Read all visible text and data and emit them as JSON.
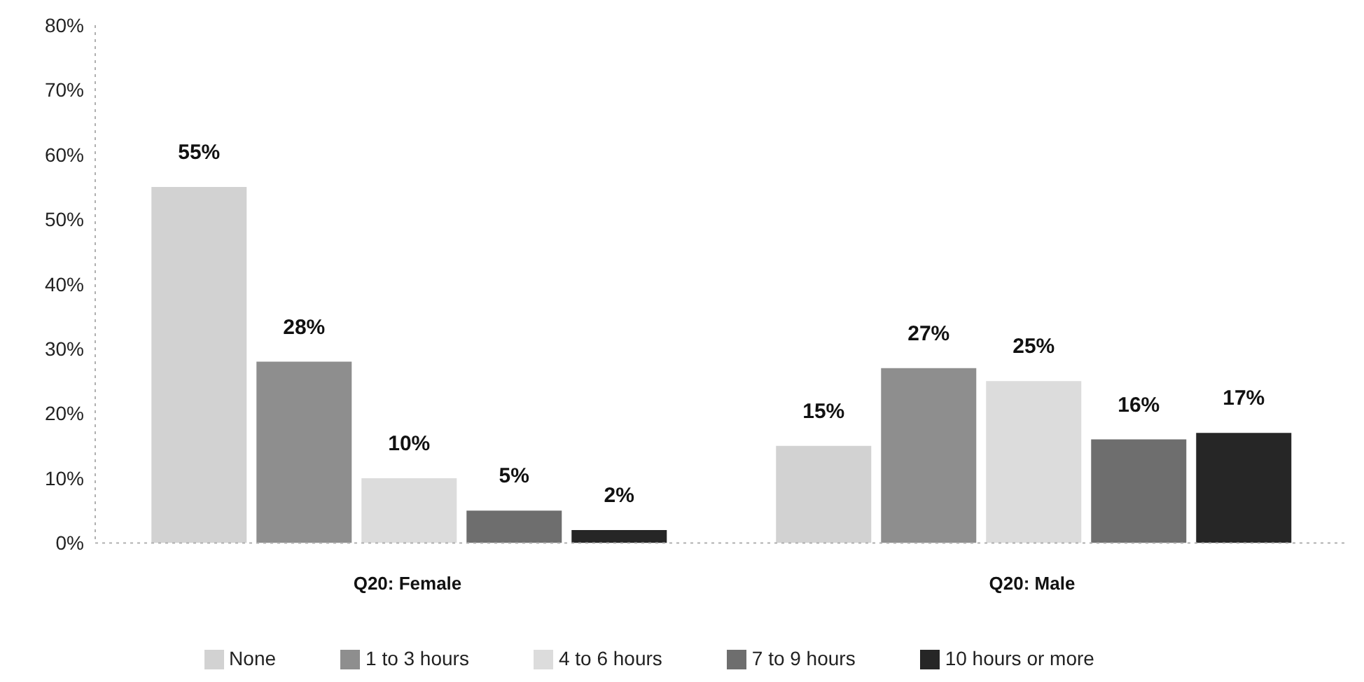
{
  "chart_data": {
    "type": "bar",
    "categories": [
      "Q20: Female",
      "Q20: Male"
    ],
    "series": [
      {
        "name": "None",
        "color": "#d2d2d2",
        "values": [
          55,
          15
        ],
        "value_labels": [
          "55%",
          "15%"
        ]
      },
      {
        "name": "1 to 3 hours",
        "color": "#8e8e8e",
        "values": [
          28,
          27
        ],
        "value_labels": [
          "28%",
          "27%"
        ]
      },
      {
        "name": "4 to 6 hours",
        "color": "#dcdcdc",
        "values": [
          10,
          25
        ],
        "value_labels": [
          "10%",
          "25%"
        ]
      },
      {
        "name": "7 to 9 hours",
        "color": "#6e6e6e",
        "values": [
          5,
          16
        ],
        "value_labels": [
          "5%",
          "16%"
        ]
      },
      {
        "name": "10 hours or more",
        "color": "#262626",
        "values": [
          2,
          17
        ],
        "value_labels": [
          "2%",
          "17%"
        ]
      }
    ],
    "ylim": [
      0,
      80
    ],
    "yticks": [
      {
        "value": 0,
        "label": "0%"
      },
      {
        "value": 10,
        "label": "10%"
      },
      {
        "value": 20,
        "label": "20%"
      },
      {
        "value": 30,
        "label": "30%"
      },
      {
        "value": 40,
        "label": "40%"
      },
      {
        "value": 50,
        "label": "50%"
      },
      {
        "value": 60,
        "label": "60%"
      },
      {
        "value": 70,
        "label": "70%"
      },
      {
        "value": 80,
        "label": "80%"
      }
    ],
    "grid": false,
    "legend": "bottom"
  }
}
